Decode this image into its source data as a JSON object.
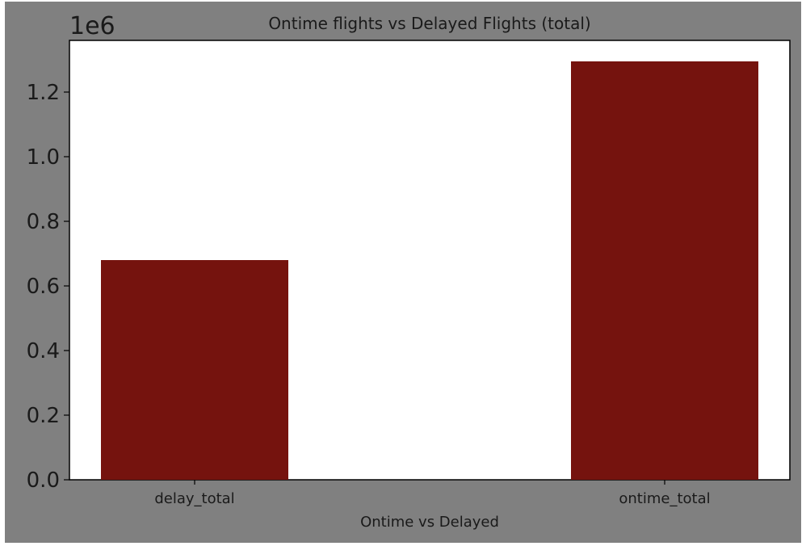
{
  "chart_data": {
    "type": "bar",
    "title": "Ontime flights vs Delayed Flights (total)",
    "xlabel": "Ontime vs Delayed",
    "ylabel": "",
    "y_offset_label": "1e6",
    "categories": [
      "delay_total",
      "ontime_total"
    ],
    "values": [
      680000,
      1295000
    ],
    "ylim": [
      0,
      1360000
    ],
    "yticks": [
      0,
      200000,
      400000,
      600000,
      800000,
      1000000,
      1200000
    ],
    "ytick_labels": [
      "0.0",
      "0.2",
      "0.4",
      "0.6",
      "0.8",
      "1.0",
      "1.2"
    ],
    "grid": false,
    "bar_color": "#75130e",
    "figure_background": "#808080",
    "plot_background": "#ffffff"
  }
}
